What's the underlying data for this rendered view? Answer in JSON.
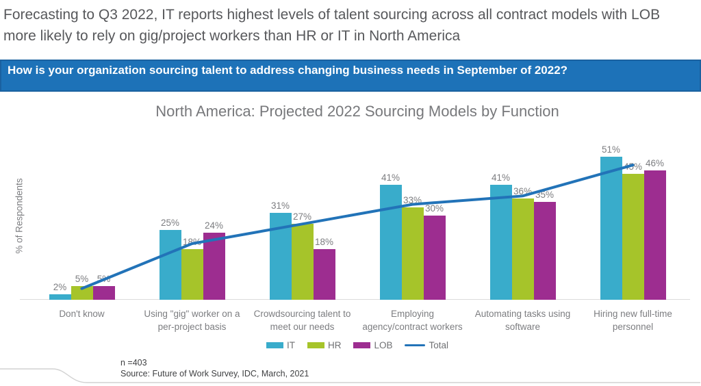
{
  "headline": "Forecasting to Q3 2022, IT reports highest levels of talent sourcing across all contract models with LOB more likely to rely on gig/project workers than HR or IT in North America",
  "question_banner": "How is your organization sourcing talent to address changing business needs in September of 2022?",
  "chart_data": {
    "type": "bar",
    "title": "North America: Projected 2022 Sourcing Models by Function",
    "ylabel": "% of Respondents",
    "value_suffix": "%",
    "ylim": [
      0,
      60
    ],
    "grid": false,
    "legend_position": "bottom",
    "categories": [
      "Don't know",
      "Using \"gig\" worker on a per-project basis",
      "Crowdsourcing talent to meet our needs",
      "Employing agency/contract workers",
      "Automating tasks using software",
      "Hiring new full-time personnel"
    ],
    "series": [
      {
        "name": "IT",
        "type": "bar",
        "color": "#39accb",
        "values": [
          2,
          25,
          31,
          41,
          41,
          51
        ]
      },
      {
        "name": "HR",
        "type": "bar",
        "color": "#a6c42a",
        "values": [
          5,
          18,
          27,
          33,
          36,
          45
        ]
      },
      {
        "name": "LOB",
        "type": "bar",
        "color": "#9d2d90",
        "values": [
          5,
          24,
          18,
          30,
          35,
          46
        ]
      },
      {
        "name": "Total",
        "type": "line",
        "color": "#2273b8",
        "values": [
          4,
          20,
          27,
          34,
          37,
          48
        ],
        "estimated": true
      }
    ]
  },
  "footnote": {
    "sample": "n =403",
    "source": "Source: Future of Work Survey, IDC, March, 2021"
  },
  "colors": {
    "banner_bg": "#1d72b8",
    "banner_border": "#1a61a0",
    "headline_text": "#57585b",
    "title_text": "#77787b",
    "axis_text": "#7c7d80",
    "total_line": "#2273b8"
  }
}
